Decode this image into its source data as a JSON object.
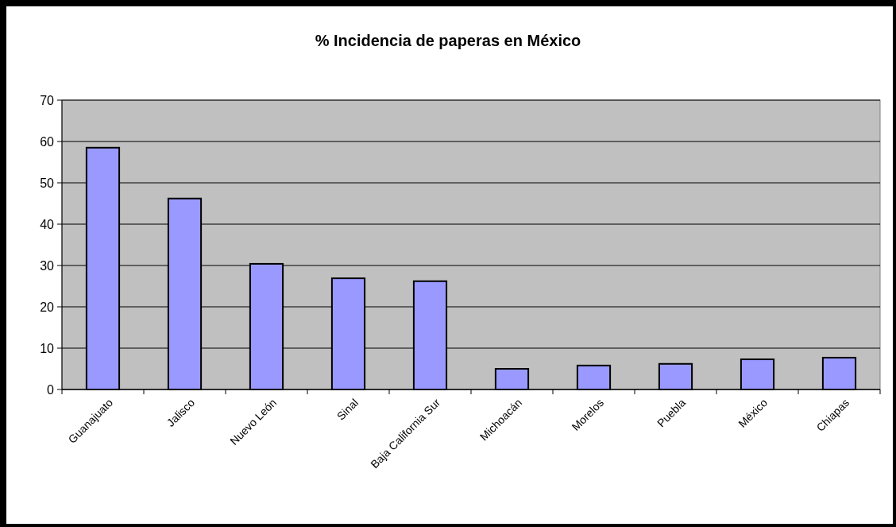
{
  "chart_data": {
    "type": "bar",
    "title": "% Incidencia de paperas en México",
    "categories": [
      "Guanajuato",
      "Jalisco",
      "Nuevo León",
      "Sinal",
      "Baja California Sur",
      "Michoacán",
      "Morelos",
      "Puebla",
      "México",
      "Chiapas"
    ],
    "values": [
      58.5,
      46.2,
      30.4,
      26.9,
      26.2,
      5.0,
      5.8,
      6.2,
      7.3,
      7.7
    ],
    "color": "#9999ff",
    "ylim": [
      0,
      70
    ],
    "yticks": [
      0,
      10,
      20,
      30,
      40,
      50,
      60,
      70
    ],
    "grid": "y"
  }
}
